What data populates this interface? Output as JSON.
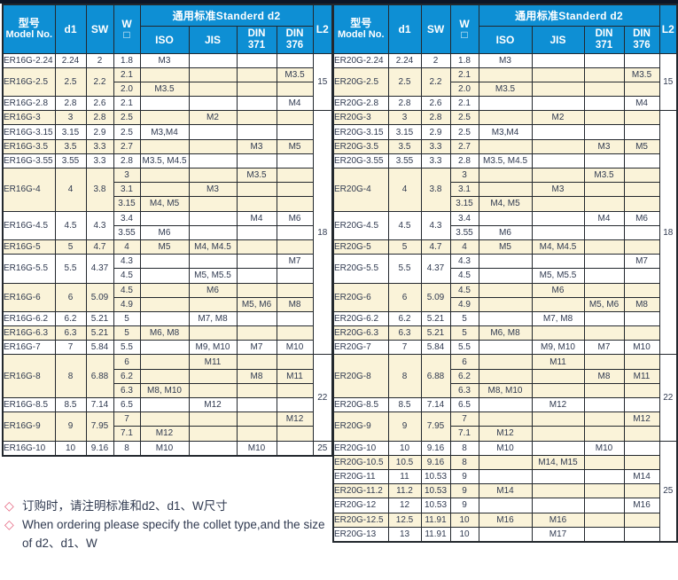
{
  "colors": {
    "header_bg": "#0e8fd4",
    "header_text": "#ffffff",
    "row_alt_bg": "#faf3d9",
    "border": "#23282e",
    "text": "#303a50",
    "diamond": "#e5647f",
    "top_bar": "#0d1526"
  },
  "columns": {
    "model_zh": "型号",
    "model_en": "Model No.",
    "d1": "d1",
    "sw": "SW",
    "w": "W",
    "w_symbol": "□",
    "standard_d2": "通用标准Standerd  d2",
    "iso": "ISO",
    "jis": "JIS",
    "din": "DIN",
    "din371_num": "371",
    "din376_num": "376",
    "l2": "L2"
  },
  "tables": [
    {
      "series": "ER16G",
      "l2_spans": [
        {
          "label": "15",
          "rows": 4
        },
        {
          "label": "18",
          "rows": 17
        },
        {
          "label": "22",
          "rows": 6
        },
        {
          "label": "25",
          "rows": 1
        }
      ],
      "rows": [
        {
          "model": "ER16G-2.24",
          "d1": "2.24",
          "sw": "2",
          "shaded": false,
          "subs": [
            {
              "w": "1.8",
              "iso": "M3"
            }
          ]
        },
        {
          "model": "ER16G-2.5",
          "d1": "2.5",
          "sw": "2.2",
          "shaded": true,
          "subs": [
            {
              "w": "2.1",
              "din376": "M3.5"
            },
            {
              "w": "2.0",
              "iso": "M3.5"
            }
          ]
        },
        {
          "model": "ER16G-2.8",
          "d1": "2.8",
          "sw": "2.6",
          "shaded": false,
          "subs": [
            {
              "w": "2.1",
              "din376": "M4"
            }
          ]
        },
        {
          "model": "ER16G-3",
          "d1": "3",
          "sw": "2.8",
          "shaded": true,
          "subs": [
            {
              "w": "2.5",
              "jis": "M2"
            }
          ]
        },
        {
          "model": "ER16G-3.15",
          "d1": "3.15",
          "sw": "2.9",
          "shaded": false,
          "subs": [
            {
              "w": "2.5",
              "iso": "M3,M4"
            }
          ]
        },
        {
          "model": "ER16G-3.5",
          "d1": "3.5",
          "sw": "3.3",
          "shaded": true,
          "subs": [
            {
              "w": "2.7",
              "din371": "M3",
              "din376": "M5"
            }
          ]
        },
        {
          "model": "ER16G-3.55",
          "d1": "3.55",
          "sw": "3.3",
          "shaded": false,
          "subs": [
            {
              "w": "2.8",
              "iso": "M3.5, M4.5"
            }
          ]
        },
        {
          "model": "ER16G-4",
          "d1": "4",
          "sw": "3.8",
          "shaded": true,
          "subs": [
            {
              "w": "3",
              "din371": "M3.5"
            },
            {
              "w": "3.1",
              "jis": "M3"
            },
            {
              "w": "3.15",
              "iso": "M4, M5"
            }
          ]
        },
        {
          "model": "ER16G-4.5",
          "d1": "4.5",
          "sw": "4.3",
          "shaded": false,
          "subs": [
            {
              "w": "3.4",
              "din371": "M4",
              "din376": "M6"
            },
            {
              "w": "3.55",
              "iso": "M6"
            }
          ]
        },
        {
          "model": "ER16G-5",
          "d1": "5",
          "sw": "4.7",
          "shaded": true,
          "subs": [
            {
              "w": "4",
              "iso": "M5",
              "jis": "M4, M4.5"
            }
          ]
        },
        {
          "model": "ER16G-5.5",
          "d1": "5.5",
          "sw": "4.37",
          "shaded": false,
          "subs": [
            {
              "w": "4.3",
              "din376": "M7"
            },
            {
              "w": "4.5",
              "jis": "M5, M5.5"
            }
          ]
        },
        {
          "model": "ER16G-6",
          "d1": "6",
          "sw": "5.09",
          "shaded": true,
          "subs": [
            {
              "w": "4.5",
              "jis": "M6"
            },
            {
              "w": "4.9",
              "din371": "M5, M6",
              "din376": "M8"
            }
          ]
        },
        {
          "model": "ER16G-6.2",
          "d1": "6.2",
          "sw": "5.21",
          "shaded": false,
          "subs": [
            {
              "w": "5",
              "jis": "M7, M8"
            }
          ]
        },
        {
          "model": "ER16G-6.3",
          "d1": "6.3",
          "sw": "5.21",
          "shaded": true,
          "subs": [
            {
              "w": "5",
              "iso": "M6, M8"
            }
          ]
        },
        {
          "model": "ER16G-7",
          "d1": "7",
          "sw": "5.84",
          "shaded": false,
          "subs": [
            {
              "w": "5.5",
              "jis": "M9, M10",
              "din371": "M7",
              "din376": "M10"
            }
          ]
        },
        {
          "model": "ER16G-8",
          "d1": "8",
          "sw": "6.88",
          "shaded": true,
          "subs": [
            {
              "w": "6",
              "jis": "M11"
            },
            {
              "w": "6.2",
              "din371": "M8",
              "din376": "M11"
            },
            {
              "w": "6.3",
              "iso": "M8, M10"
            }
          ]
        },
        {
          "model": "ER16G-8.5",
          "d1": "8.5",
          "sw": "7.14",
          "shaded": false,
          "subs": [
            {
              "w": "6.5",
              "jis": "M12"
            }
          ]
        },
        {
          "model": "ER16G-9",
          "d1": "9",
          "sw": "7.95",
          "shaded": true,
          "subs": [
            {
              "w": "7",
              "din376": "M12"
            },
            {
              "w": "7.1",
              "iso": "M12"
            }
          ]
        },
        {
          "model": "ER16G-10",
          "d1": "10",
          "sw": "9.16",
          "shaded": false,
          "subs": [
            {
              "w": "8",
              "iso": "M10",
              "din371": "M10"
            }
          ]
        }
      ]
    },
    {
      "series": "ER20G",
      "l2_spans": [
        {
          "label": "15",
          "rows": 4
        },
        {
          "label": "18",
          "rows": 17
        },
        {
          "label": "22",
          "rows": 6
        },
        {
          "label": "25",
          "rows": 7
        }
      ],
      "rows": [
        {
          "model": "ER20G-2.24",
          "d1": "2.24",
          "sw": "2",
          "shaded": false,
          "subs": [
            {
              "w": "1.8",
              "iso": "M3"
            }
          ]
        },
        {
          "model": "ER20G-2.5",
          "d1": "2.5",
          "sw": "2.2",
          "shaded": true,
          "subs": [
            {
              "w": "2.1",
              "din376": "M3.5"
            },
            {
              "w": "2.0",
              "iso": "M3.5"
            }
          ]
        },
        {
          "model": "ER20G-2.8",
          "d1": "2.8",
          "sw": "2.6",
          "shaded": false,
          "subs": [
            {
              "w": "2.1",
              "din376": "M4"
            }
          ]
        },
        {
          "model": "ER20G-3",
          "d1": "3",
          "sw": "2.8",
          "shaded": true,
          "subs": [
            {
              "w": "2.5",
              "jis": "M2"
            }
          ]
        },
        {
          "model": "ER20G-3.15",
          "d1": "3.15",
          "sw": "2.9",
          "shaded": false,
          "subs": [
            {
              "w": "2.5",
              "iso": "M3,M4"
            }
          ]
        },
        {
          "model": "ER20G-3.5",
          "d1": "3.5",
          "sw": "3.3",
          "shaded": true,
          "subs": [
            {
              "w": "2.7",
              "din371": "M3",
              "din376": "M5"
            }
          ]
        },
        {
          "model": "ER20G-3.55",
          "d1": "3.55",
          "sw": "3.3",
          "shaded": false,
          "subs": [
            {
              "w": "2.8",
              "iso": "M3.5, M4.5"
            }
          ]
        },
        {
          "model": "ER20G-4",
          "d1": "4",
          "sw": "3.8",
          "shaded": true,
          "subs": [
            {
              "w": "3",
              "din371": "M3.5"
            },
            {
              "w": "3.1",
              "jis": "M3"
            },
            {
              "w": "3.15",
              "iso": "M4, M5"
            }
          ]
        },
        {
          "model": "ER20G-4.5",
          "d1": "4.5",
          "sw": "4.3",
          "shaded": false,
          "subs": [
            {
              "w": "3.4",
              "din371": "M4",
              "din376": "M6"
            },
            {
              "w": "3.55",
              "iso": "M6"
            }
          ]
        },
        {
          "model": "ER20G-5",
          "d1": "5",
          "sw": "4.7",
          "shaded": true,
          "subs": [
            {
              "w": "4",
              "iso": "M5",
              "jis": "M4, M4.5"
            }
          ]
        },
        {
          "model": "ER20G-5.5",
          "d1": "5.5",
          "sw": "4.37",
          "shaded": false,
          "subs": [
            {
              "w": "4.3",
              "din376": "M7"
            },
            {
              "w": "4.5",
              "jis": "M5, M5.5"
            }
          ]
        },
        {
          "model": "ER20G-6",
          "d1": "6",
          "sw": "5.09",
          "shaded": true,
          "subs": [
            {
              "w": "4.5",
              "jis": "M6"
            },
            {
              "w": "4.9",
              "din371": "M5, M6",
              "din376": "M8"
            }
          ]
        },
        {
          "model": "ER20G-6.2",
          "d1": "6.2",
          "sw": "5.21",
          "shaded": false,
          "subs": [
            {
              "w": "5",
              "jis": "M7, M8"
            }
          ]
        },
        {
          "model": "ER20G-6.3",
          "d1": "6.3",
          "sw": "5.21",
          "shaded": true,
          "subs": [
            {
              "w": "5",
              "iso": "M6, M8"
            }
          ]
        },
        {
          "model": "ER20G-7",
          "d1": "7",
          "sw": "5.84",
          "shaded": false,
          "subs": [
            {
              "w": "5.5",
              "jis": "M9, M10",
              "din371": "M7",
              "din376": "M10"
            }
          ]
        },
        {
          "model": "ER20G-8",
          "d1": "8",
          "sw": "6.88",
          "shaded": true,
          "subs": [
            {
              "w": "6",
              "jis": "M11"
            },
            {
              "w": "6.2",
              "din371": "M8",
              "din376": "M11"
            },
            {
              "w": "6.3",
              "iso": "M8, M10"
            }
          ]
        },
        {
          "model": "ER20G-8.5",
          "d1": "8.5",
          "sw": "7.14",
          "shaded": false,
          "subs": [
            {
              "w": "6.5",
              "jis": "M12"
            }
          ]
        },
        {
          "model": "ER20G-9",
          "d1": "9",
          "sw": "7.95",
          "shaded": true,
          "subs": [
            {
              "w": "7",
              "din376": "M12"
            },
            {
              "w": "7.1",
              "iso": "M12"
            }
          ]
        },
        {
          "model": "ER20G-10",
          "d1": "10",
          "sw": "9.16",
          "shaded": false,
          "subs": [
            {
              "w": "8",
              "iso": "M10",
              "din371": "M10"
            }
          ]
        },
        {
          "model": "ER20G-10.5",
          "d1": "10.5",
          "sw": "9.16",
          "shaded": true,
          "subs": [
            {
              "w": "8",
              "jis": "M14, M15"
            }
          ]
        },
        {
          "model": "ER20G-11",
          "d1": "11",
          "sw": "10.53",
          "shaded": false,
          "subs": [
            {
              "w": "9",
              "din376": "M14"
            }
          ]
        },
        {
          "model": "ER20G-11.2",
          "d1": "11.2",
          "sw": "10.53",
          "shaded": true,
          "subs": [
            {
              "w": "9",
              "iso": "M14"
            }
          ]
        },
        {
          "model": "ER20G-12",
          "d1": "12",
          "sw": "10.53",
          "shaded": false,
          "subs": [
            {
              "w": "9",
              "din376": "M16"
            }
          ]
        },
        {
          "model": "ER20G-12.5",
          "d1": "12.5",
          "sw": "11.91",
          "shaded": true,
          "subs": [
            {
              "w": "10",
              "iso": "M16",
              "jis": "M16"
            }
          ]
        },
        {
          "model": "ER20G-13",
          "d1": "13",
          "sw": "11.91",
          "shaded": false,
          "subs": [
            {
              "w": "10",
              "jis": "M17"
            }
          ]
        }
      ]
    }
  ],
  "notes": [
    {
      "symbol": "◇",
      "text": "订购时，请注明标准和d2、d1、W尺寸"
    },
    {
      "symbol": "◇",
      "text": "When ordering please specify the collet type,and the size of d2、d1、W"
    }
  ]
}
